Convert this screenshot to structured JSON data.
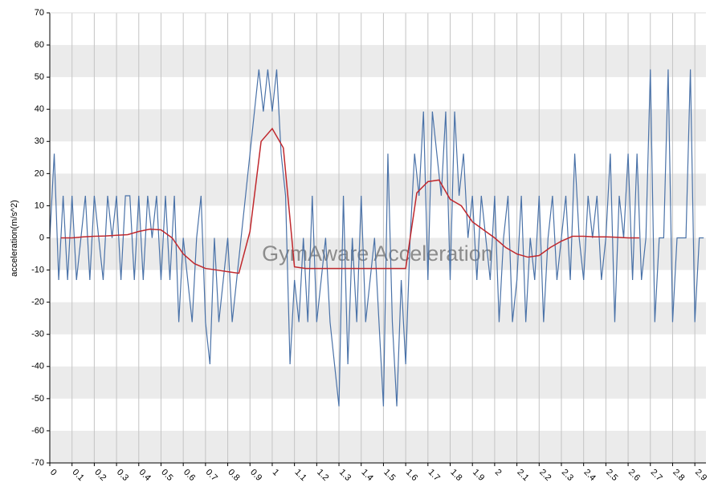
{
  "chart_data": {
    "type": "line",
    "watermark": "GymAware Acceleration",
    "y_label": "acceleration(m/s^2)",
    "xlim": [
      0,
      2.95
    ],
    "xticks": [
      0,
      0.1,
      0.2,
      0.3,
      0.4,
      0.5,
      0.6,
      0.7,
      0.8,
      0.9,
      1,
      1.1,
      1.2,
      1.3,
      1.4,
      1.5,
      1.6,
      1.7,
      1.8,
      1.9,
      2,
      2.1,
      2.2,
      2.3,
      2.4,
      2.5,
      2.6,
      2.7,
      2.8,
      2.9
    ],
    "ylim": [
      -70,
      70
    ],
    "yticks": [
      -70,
      -60,
      -50,
      -40,
      -30,
      -20,
      -10,
      0,
      10,
      20,
      30,
      40,
      50,
      60,
      70
    ],
    "grid": true,
    "bands": true,
    "series": [
      {
        "color": "#4a72a8",
        "x": [
          0,
          0.02,
          0.04,
          0.06,
          0.08,
          0.1,
          0.12,
          0.14,
          0.16,
          0.18,
          0.2,
          0.22,
          0.24,
          0.26,
          0.28,
          0.3,
          0.32,
          0.34,
          0.36,
          0.38,
          0.4,
          0.42,
          0.44,
          0.46,
          0.48,
          0.5,
          0.52,
          0.54,
          0.56,
          0.58,
          0.6,
          0.62,
          0.64,
          0.66,
          0.68,
          0.7,
          0.72,
          0.74,
          0.76,
          0.78,
          0.8,
          0.82,
          0.84,
          0.86,
          0.88,
          0.9,
          0.92,
          0.94,
          0.96,
          0.98,
          1,
          1.02,
          1.04,
          1.06,
          1.08,
          1.1,
          1.12,
          1.14,
          1.16,
          1.18,
          1.2,
          1.22,
          1.24,
          1.26,
          1.28,
          1.3,
          1.32,
          1.34,
          1.36,
          1.38,
          1.4,
          1.42,
          1.44,
          1.46,
          1.48,
          1.5,
          1.52,
          1.54,
          1.56,
          1.58,
          1.6,
          1.62,
          1.64,
          1.66,
          1.68,
          1.7,
          1.72,
          1.74,
          1.76,
          1.78,
          1.8,
          1.82,
          1.84,
          1.86,
          1.88,
          1.9,
          1.92,
          1.94,
          1.96,
          1.98,
          2,
          2.02,
          2.04,
          2.06,
          2.08,
          2.1,
          2.12,
          2.14,
          2.16,
          2.18,
          2.2,
          2.22,
          2.24,
          2.26,
          2.28,
          2.3,
          2.32,
          2.34,
          2.36,
          2.38,
          2.4,
          2.42,
          2.44,
          2.46,
          2.48,
          2.5,
          2.52,
          2.54,
          2.56,
          2.58,
          2.6,
          2.62,
          2.64,
          2.66,
          2.68,
          2.7,
          2.72,
          2.74,
          2.76,
          2.78,
          2.8,
          2.82,
          2.84,
          2.86,
          2.88,
          2.9,
          2.92,
          2.94
        ],
        "values": [
          0,
          26.2,
          -13.1,
          13.1,
          -13.1,
          13.1,
          -13.1,
          0,
          13.1,
          -13.1,
          13.1,
          0,
          -13.1,
          13.1,
          0,
          13.1,
          -13.1,
          13.1,
          13.1,
          -13.1,
          13.1,
          -13.1,
          13.1,
          0,
          13.1,
          -13.1,
          13.1,
          -13.1,
          13.1,
          -26.2,
          0,
          -13.1,
          -26.2,
          0,
          13.1,
          -26.2,
          -39.3,
          0,
          -26.2,
          -13.1,
          0,
          -26.2,
          -13.1,
          0,
          13.1,
          26.2,
          39.3,
          52.4,
          39.3,
          52.4,
          39.3,
          52.4,
          26.2,
          13.1,
          -39.3,
          -13.1,
          -26.2,
          0,
          -26.2,
          13.1,
          -26.2,
          -13.1,
          0,
          -26.2,
          -39.3,
          -52.4,
          13.1,
          -39.3,
          0,
          -26.2,
          13.1,
          -26.2,
          -13.1,
          0,
          -26.2,
          -52.4,
          26.2,
          -26.2,
          -52.4,
          -13.1,
          -39.3,
          0,
          26.2,
          13.1,
          39.3,
          -13.1,
          39.3,
          26.2,
          13.1,
          39.3,
          -13.1,
          39.3,
          13.1,
          26.2,
          0,
          13.1,
          -13.1,
          13.1,
          0,
          -13.1,
          13.1,
          -26.2,
          0,
          13.1,
          -26.2,
          -13.1,
          13.1,
          -26.2,
          0,
          -13.1,
          13.1,
          -26.2,
          0,
          13.1,
          -13.1,
          0,
          13.1,
          -13.1,
          26.2,
          0,
          -13.1,
          13.1,
          0,
          13.1,
          -13.1,
          0,
          26.2,
          -26.2,
          13.1,
          0,
          26.2,
          -13.1,
          26.2,
          -13.1,
          0,
          52.4,
          -26.2,
          0,
          0,
          52.4,
          -26.2,
          0,
          0,
          0,
          52.4,
          -26.2,
          0,
          0
        ]
      },
      {
        "color": "#c0282d",
        "x": [
          0.05,
          0.1,
          0.15,
          0.2,
          0.25,
          0.3,
          0.35,
          0.4,
          0.45,
          0.5,
          0.55,
          0.6,
          0.65,
          0.7,
          0.75,
          0.8,
          0.85,
          0.9,
          0.95,
          1,
          1.05,
          1.1,
          1.15,
          1.2,
          1.25,
          1.3,
          1.35,
          1.4,
          1.45,
          1.5,
          1.55,
          1.6,
          1.65,
          1.7,
          1.75,
          1.8,
          1.85,
          1.9,
          1.95,
          2,
          2.05,
          2.1,
          2.15,
          2.2,
          2.25,
          2.3,
          2.35,
          2.4,
          2.45,
          2.5,
          2.55,
          2.6,
          2.65
        ],
        "values": [
          0,
          0,
          0.3,
          0.5,
          0.6,
          0.8,
          1,
          2,
          2.7,
          2.5,
          0,
          -5,
          -8,
          -9.5,
          -10,
          -10.5,
          -11,
          2,
          30,
          34,
          28,
          -9,
          -9.5,
          -9.5,
          -9.5,
          -9.5,
          -9.5,
          -9.5,
          -9.5,
          -9.5,
          -9.5,
          -9.5,
          14,
          17.5,
          18,
          12,
          10,
          5,
          2.5,
          0,
          -3,
          -5,
          -6,
          -5.5,
          -3,
          -1,
          0.5,
          0.5,
          0.3,
          0.3,
          0.2,
          0,
          0
        ]
      }
    ]
  }
}
